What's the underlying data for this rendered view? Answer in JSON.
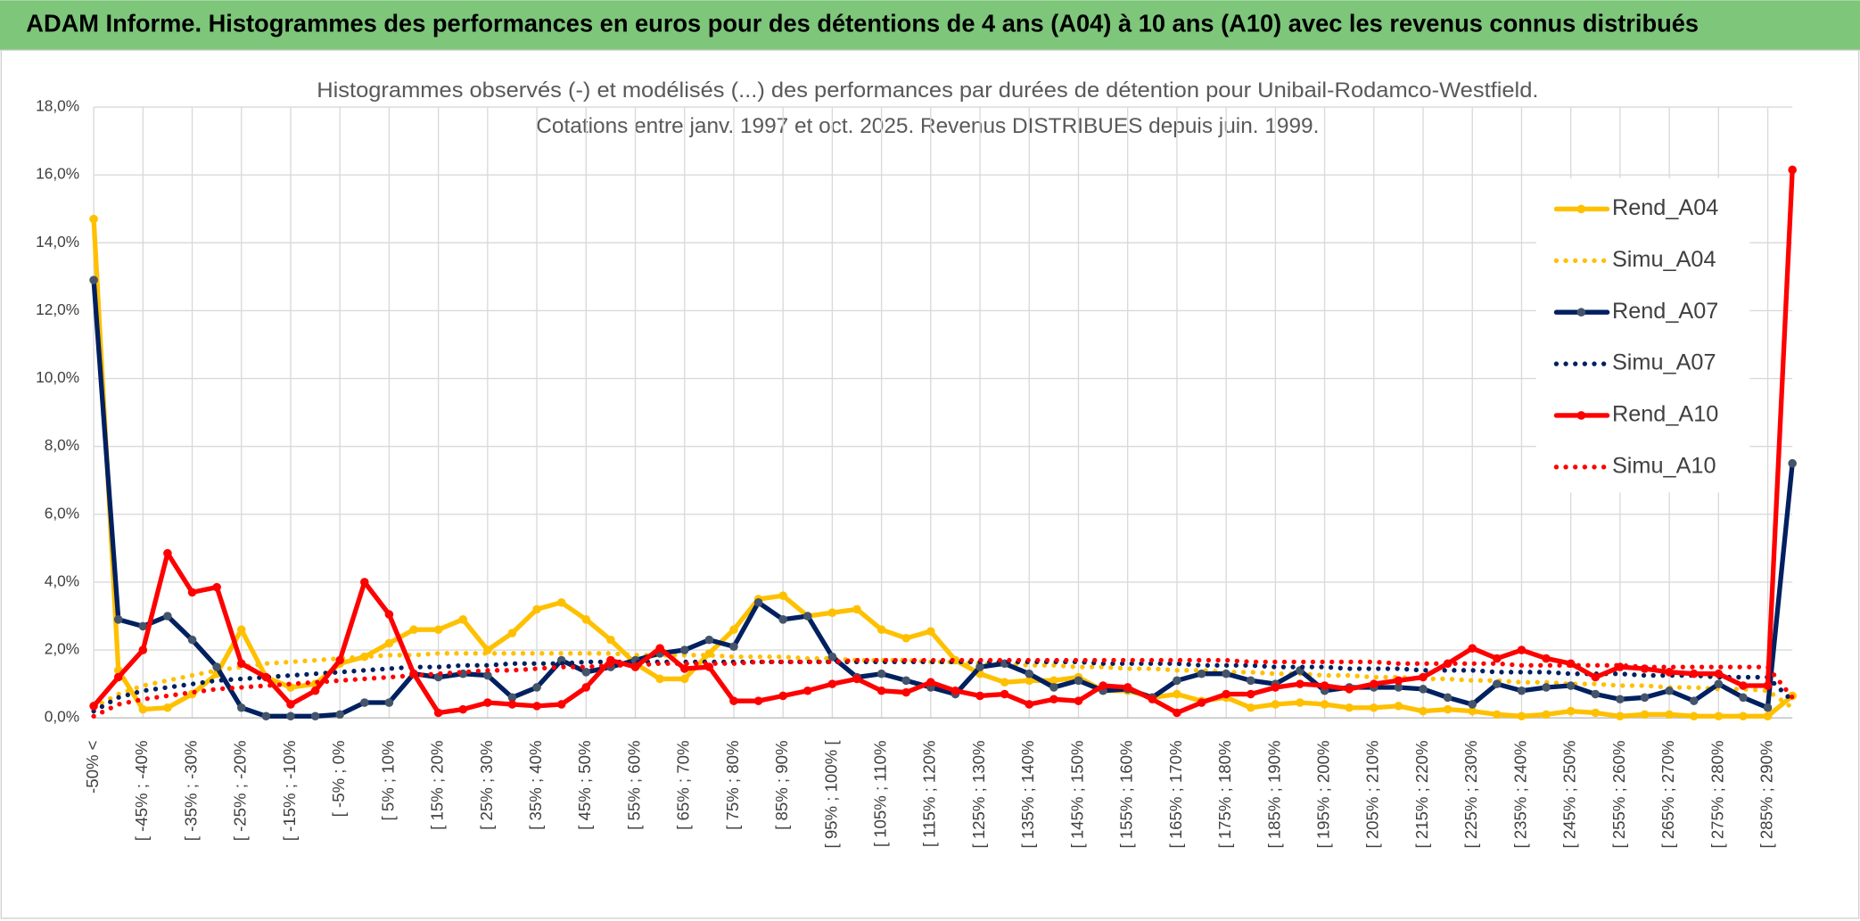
{
  "header": {
    "title": "ADAM Informe. Histogrammes des performances en euros pour des détentions de 4 ans (A04) à 10 ans (A10) avec les revenus connus distribués"
  },
  "chart_data": {
    "type": "line",
    "title": "Histogrammes observés (-) et modélisés (...) des performances par durées de détention pour Unibail-Rodamco-Westfield.",
    "subtitle": "Cotations entre janv. 1997 et oct. 2025. Revenus DISTRIBUES depuis juin. 1999.",
    "legend": "right",
    "grid": true,
    "categories": [
      "-50% <",
      null,
      "[ -45% ; -40%",
      null,
      "[ -35% ; -30%",
      null,
      "[ -25% ; -20%",
      null,
      "[ -15% ; -10%",
      null,
      "[ -5% ; 0%",
      null,
      "[ 5% ; 10%",
      null,
      "[ 15% ; 20%",
      null,
      "[ 25% ; 30%",
      null,
      "[ 35% ; 40%",
      null,
      "[ 45% ; 50%",
      null,
      "[ 55% ; 60%",
      null,
      "[ 65% ; 70%",
      null,
      "[ 75% ; 80%",
      null,
      "[ 85% ; 90%",
      null,
      "[ 95% ; 100% [",
      null,
      "[ 105% ; 110%",
      null,
      "[ 115% ; 120%",
      null,
      "[ 125% ; 130%",
      null,
      "[ 135% ; 140%",
      null,
      "[ 145% ; 150%",
      null,
      "[ 155% ; 160%",
      null,
      "[ 165% ; 170%",
      null,
      "[ 175% ; 180%",
      null,
      "[ 185% ; 190%",
      null,
      "[ 195% ; 200%",
      null,
      "[ 205% ; 210%",
      null,
      "[ 215% ; 220%",
      null,
      "[ 225% ; 230%",
      null,
      "[ 235% ; 240%",
      null,
      "[ 245% ; 250%",
      null,
      "[ 255% ; 260%",
      null,
      "[ 265% ; 270%",
      null,
      "[ 275% ; 280%",
      null,
      "[ 285% ; 290%",
      null
    ],
    "ylim": [
      0,
      18
    ],
    "yticks": [
      {
        "value": 0,
        "label": "0,0%"
      },
      {
        "value": 2,
        "label": "2,0%"
      },
      {
        "value": 4,
        "label": "4,0%"
      },
      {
        "value": 6,
        "label": "6,0%"
      },
      {
        "value": 8,
        "label": "8,0%"
      },
      {
        "value": 10,
        "label": "10,0%"
      },
      {
        "value": 12,
        "label": "12,0%"
      },
      {
        "value": 14,
        "label": "14,0%"
      },
      {
        "value": 16,
        "label": "16,0%"
      },
      {
        "value": 18,
        "label": "18,0%"
      }
    ],
    "series": [
      {
        "name": "Rend_A04",
        "color": "#ffc000",
        "style": "solid",
        "markers": true,
        "values": [
          14.7,
          1.4,
          0.25,
          0.3,
          0.7,
          1.3,
          2.6,
          1.2,
          0.9,
          1.0,
          1.6,
          1.8,
          2.2,
          2.6,
          2.6,
          2.9,
          2.0,
          2.5,
          3.2,
          3.4,
          2.9,
          2.3,
          1.6,
          1.15,
          1.15,
          1.9,
          2.6,
          3.5,
          3.6,
          3.0,
          3.1,
          3.2,
          2.6,
          2.35,
          2.55,
          1.7,
          1.3,
          1.05,
          1.1,
          1.1,
          1.2,
          0.8,
          0.8,
          0.6,
          0.7,
          0.5,
          0.6,
          0.3,
          0.4,
          0.45,
          0.4,
          0.3,
          0.3,
          0.35,
          0.2,
          0.25,
          0.2,
          0.1,
          0.05,
          0.1,
          0.2,
          0.15,
          0.05,
          0.1,
          0.1,
          0.05,
          0.05,
          0.05,
          0.05,
          0.65
        ]
      },
      {
        "name": "Simu_A04",
        "color": "#ffc000",
        "style": "dotted",
        "markers": false,
        "values": [
          0.3,
          0.7,
          0.95,
          1.1,
          1.25,
          1.4,
          1.5,
          1.6,
          1.65,
          1.7,
          1.75,
          1.8,
          1.85,
          1.85,
          1.9,
          1.9,
          1.9,
          1.9,
          1.9,
          1.9,
          1.9,
          1.9,
          1.85,
          1.85,
          1.85,
          1.85,
          1.8,
          1.8,
          1.8,
          1.75,
          1.75,
          1.7,
          1.7,
          1.7,
          1.65,
          1.65,
          1.6,
          1.6,
          1.55,
          1.55,
          1.5,
          1.5,
          1.45,
          1.45,
          1.4,
          1.4,
          1.35,
          1.35,
          1.3,
          1.3,
          1.25,
          1.25,
          1.2,
          1.2,
          1.15,
          1.15,
          1.1,
          1.1,
          1.05,
          1.05,
          1.0,
          1.0,
          0.95,
          0.95,
          0.9,
          0.9,
          0.85,
          0.85,
          0.8,
          0.3
        ]
      },
      {
        "name": "Rend_A07",
        "color": "#002060",
        "style": "solid",
        "markers": true,
        "values": [
          12.9,
          2.9,
          2.7,
          3.0,
          2.3,
          1.5,
          0.3,
          0.05,
          0.05,
          0.05,
          0.1,
          0.45,
          0.45,
          1.3,
          1.2,
          1.3,
          1.25,
          0.6,
          0.9,
          1.7,
          1.35,
          1.5,
          1.7,
          1.9,
          2.0,
          2.3,
          2.1,
          3.4,
          2.9,
          3.0,
          1.8,
          1.2,
          1.3,
          1.1,
          0.9,
          0.7,
          1.5,
          1.6,
          1.3,
          0.9,
          1.1,
          0.8,
          0.85,
          0.6,
          1.1,
          1.3,
          1.3,
          1.1,
          1.0,
          1.4,
          0.8,
          0.9,
          0.9,
          0.9,
          0.85,
          0.6,
          0.4,
          1.0,
          0.8,
          0.9,
          0.95,
          0.7,
          0.55,
          0.6,
          0.8,
          0.5,
          1.0,
          0.6,
          0.3,
          7.5
        ]
      },
      {
        "name": "Simu_A07",
        "color": "#002060",
        "style": "dotted",
        "markers": false,
        "values": [
          0.2,
          0.6,
          0.8,
          0.9,
          1.0,
          1.1,
          1.15,
          1.2,
          1.25,
          1.3,
          1.35,
          1.4,
          1.45,
          1.5,
          1.5,
          1.55,
          1.55,
          1.6,
          1.6,
          1.6,
          1.65,
          1.65,
          1.65,
          1.65,
          1.65,
          1.65,
          1.65,
          1.65,
          1.65,
          1.65,
          1.65,
          1.65,
          1.65,
          1.65,
          1.65,
          1.65,
          1.65,
          1.65,
          1.65,
          1.65,
          1.65,
          1.6,
          1.6,
          1.6,
          1.6,
          1.55,
          1.55,
          1.55,
          1.5,
          1.5,
          1.5,
          1.45,
          1.45,
          1.45,
          1.4,
          1.4,
          1.4,
          1.35,
          1.35,
          1.35,
          1.3,
          1.3,
          1.3,
          1.25,
          1.25,
          1.25,
          1.2,
          1.2,
          1.2,
          0.5
        ]
      },
      {
        "name": "Rend_A10",
        "color": "#ff0000",
        "style": "solid",
        "markers": true,
        "values": [
          0.35,
          1.2,
          2.0,
          4.85,
          3.7,
          3.85,
          1.6,
          1.2,
          0.4,
          0.8,
          1.7,
          4.0,
          3.05,
          1.3,
          0.15,
          0.25,
          0.45,
          0.4,
          0.35,
          0.4,
          0.9,
          1.7,
          1.5,
          2.05,
          1.45,
          1.5,
          0.5,
          0.5,
          0.65,
          0.8,
          1.0,
          1.15,
          0.8,
          0.75,
          1.05,
          0.8,
          0.65,
          0.7,
          0.4,
          0.55,
          0.5,
          0.95,
          0.9,
          0.55,
          0.15,
          0.45,
          0.7,
          0.7,
          0.9,
          1.0,
          0.95,
          0.85,
          1.0,
          1.1,
          1.2,
          1.6,
          2.05,
          1.75,
          2.0,
          1.75,
          1.6,
          1.2,
          1.5,
          1.45,
          1.35,
          1.3,
          1.3,
          0.95,
          0.95,
          16.15
        ]
      },
      {
        "name": "Simu_A10",
        "color": "#ff0000",
        "style": "dotted",
        "markers": false,
        "values": [
          0.05,
          0.4,
          0.55,
          0.65,
          0.75,
          0.85,
          0.9,
          0.95,
          1.0,
          1.05,
          1.1,
          1.15,
          1.2,
          1.25,
          1.3,
          1.35,
          1.4,
          1.4,
          1.45,
          1.5,
          1.5,
          1.55,
          1.55,
          1.6,
          1.6,
          1.6,
          1.6,
          1.65,
          1.65,
          1.65,
          1.65,
          1.7,
          1.7,
          1.7,
          1.7,
          1.7,
          1.7,
          1.7,
          1.7,
          1.7,
          1.7,
          1.7,
          1.7,
          1.7,
          1.7,
          1.7,
          1.7,
          1.65,
          1.65,
          1.65,
          1.65,
          1.65,
          1.65,
          1.6,
          1.6,
          1.6,
          1.6,
          1.6,
          1.55,
          1.55,
          1.55,
          1.55,
          1.55,
          1.5,
          1.5,
          1.5,
          1.5,
          1.5,
          1.5,
          0.6
        ]
      }
    ]
  }
}
